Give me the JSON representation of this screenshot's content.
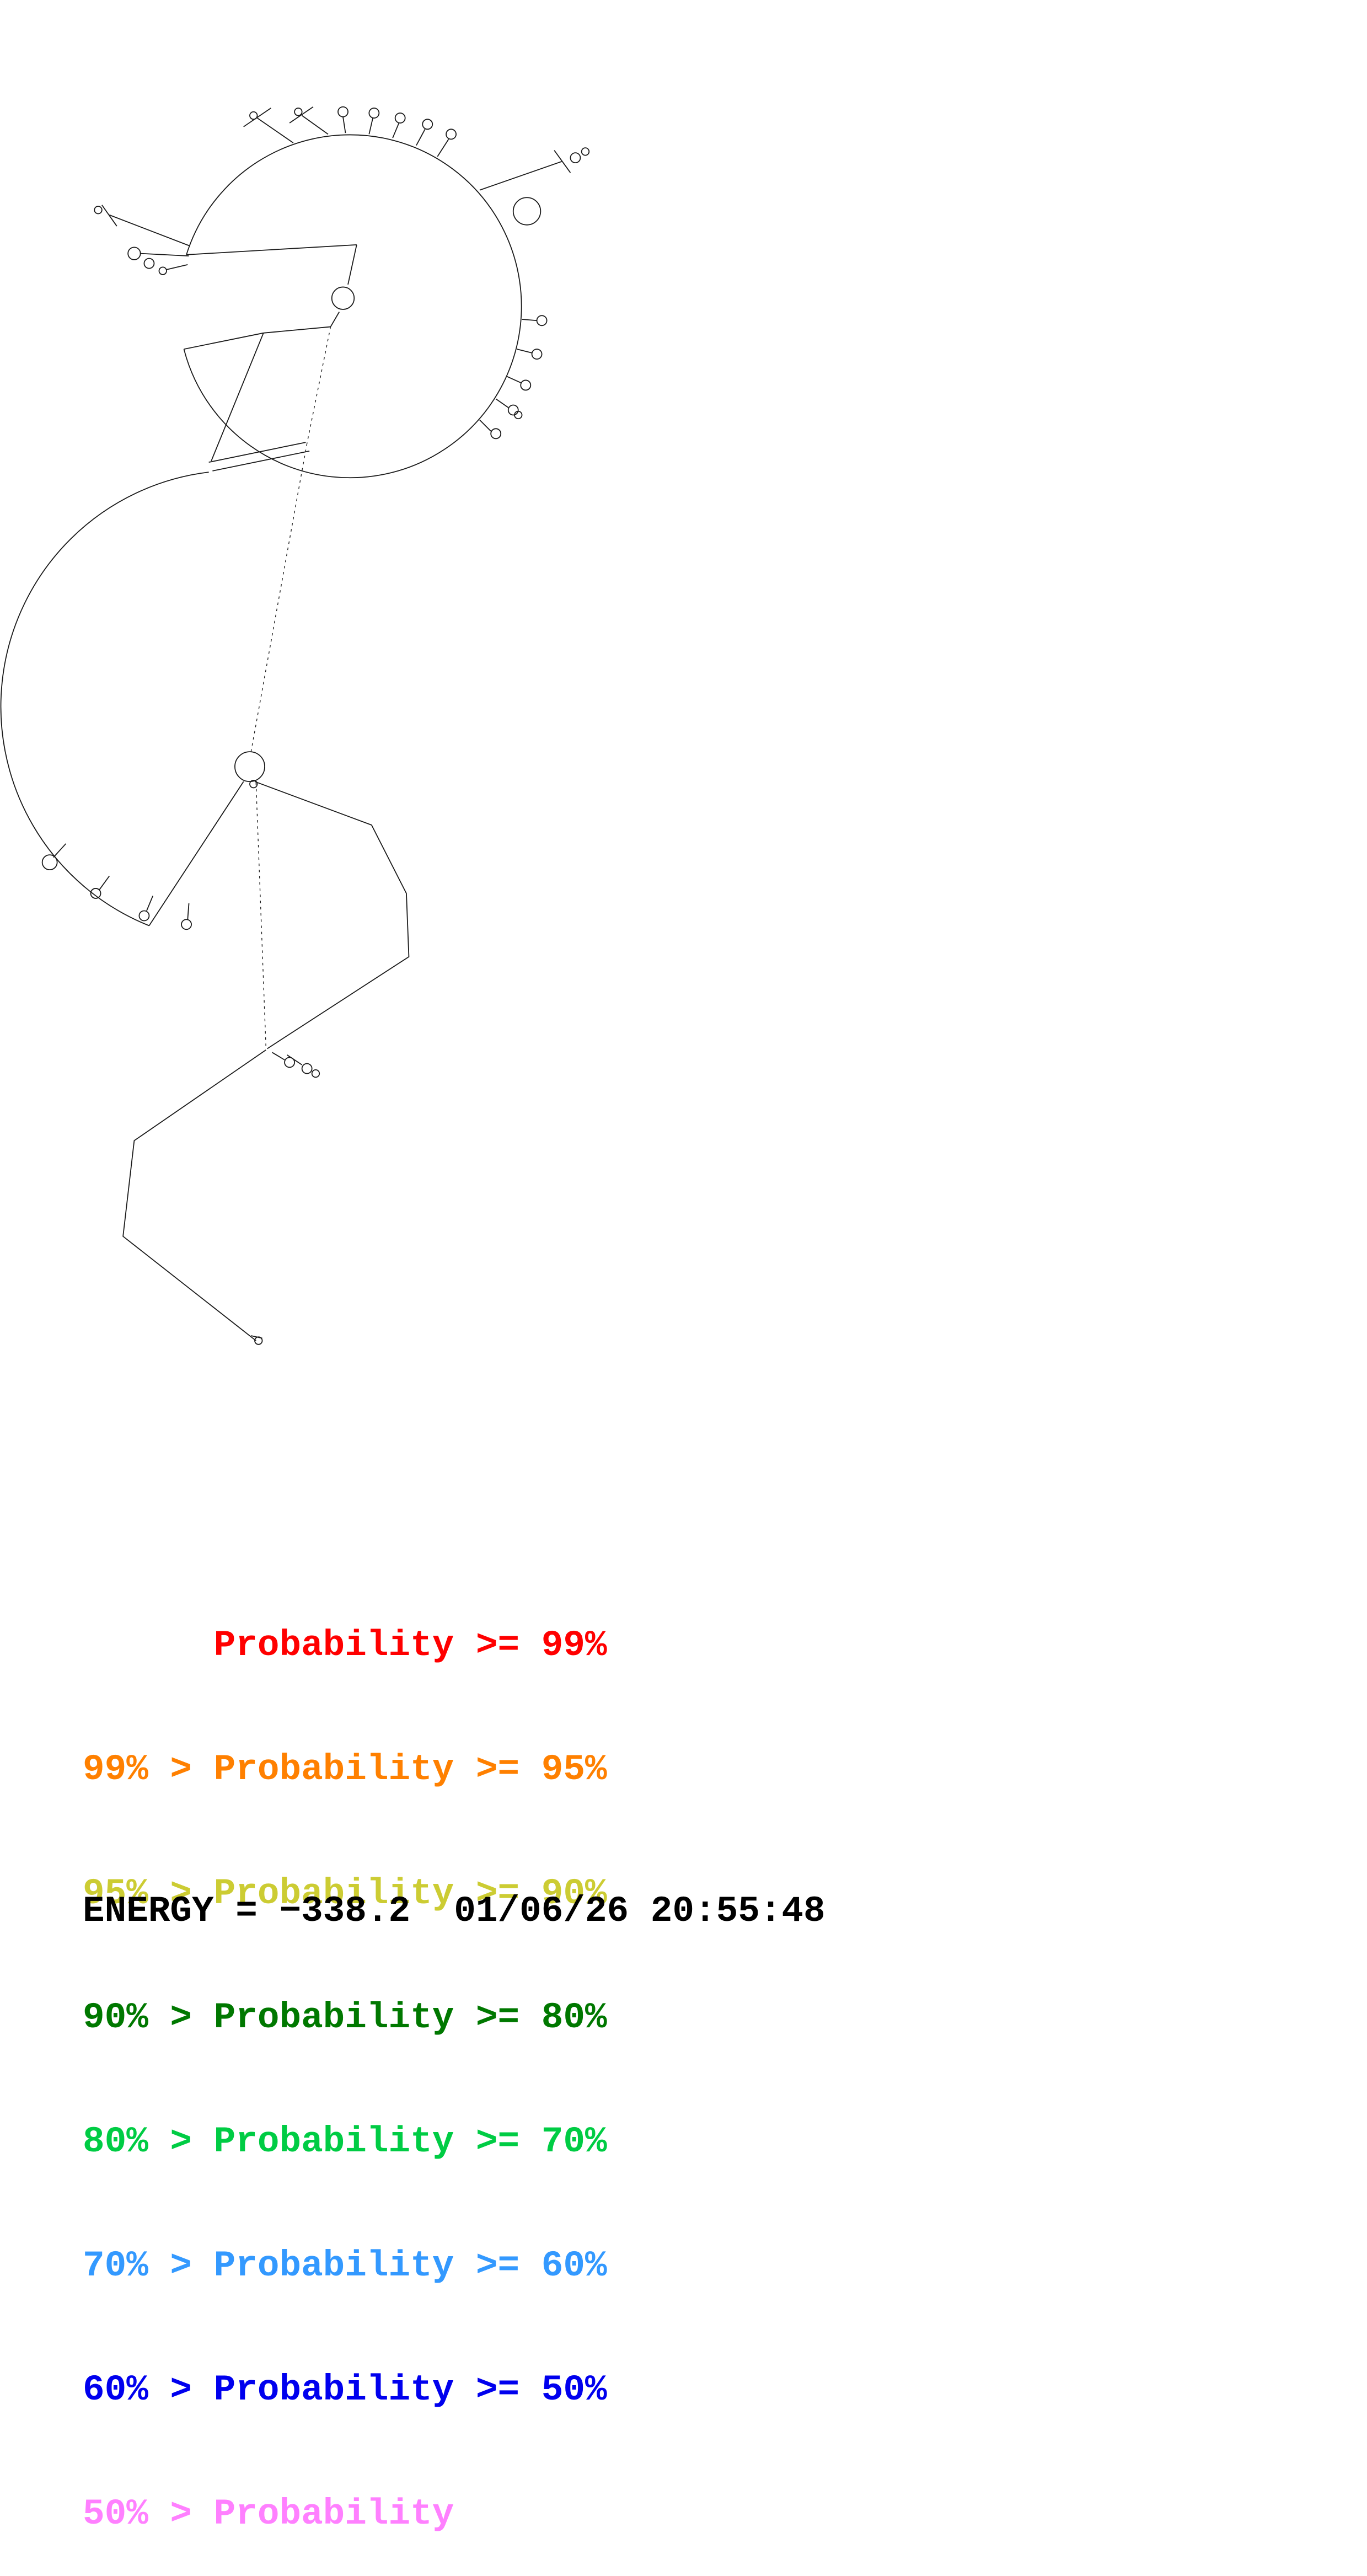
{
  "structure": {
    "stroke": "#1a1a1a",
    "solid_paths": [
      "M150,205 A138,138 0 1 1 148,281",
      "M150,205 L287,197",
      "M287,197 L280,229",
      "M273,251 L266,263",
      "M266,263 L212,268",
      "M212,268 L170,371",
      "M148,281 L212,268",
      "M168,372 L246,356",
      "M171,379 L249,363",
      "M168,380 A190,190 0 0 0 120,745",
      "M120,745 L196,629",
      "M205,629 L299,664 L327,719 L329,770 L215,844",
      "M214,845 L108,918 L99,995 L206,1079",
      "M236,115 L207,95",
      "M196,102 L218,87",
      "M264,108 L243,93",
      "M233,99 L252,86",
      "M278,107 L276,94",
      "M297,108 L300,95",
      "M316,111 L321,99",
      "M335,117 L342,104",
      "M352,126 L361,112",
      "M386,153 L452,130",
      "M446,121 L459,139",
      "M420,257 L432,258",
      "M416,281 L428,284",
      "M408,303 L419,308",
      "M399,321 L409,328",
      "M386,338 L395,347",
      "M153,198 L88,173",
      "M82,165 L94,182",
      "M152,206 L113,204",
      "M151,213 L134,217",
      "M53,679 L43,690",
      "M88,705 L80,716",
      "M123,721 L118,733",
      "M152,727 L151,740",
      "M219,847 L229,853",
      "M231,849 L243,857",
      "M202,1075 L211,1077"
    ],
    "dotted_paths": [
      "M266,263 L247,357",
      "M247,357 L202,605",
      "M206,630 L214,843"
    ],
    "circles": [
      [
        276,
        240,
        9
      ],
      [
        276,
        90,
        4
      ],
      [
        301,
        91,
        4
      ],
      [
        322,
        95,
        4
      ],
      [
        344,
        100,
        4
      ],
      [
        363,
        108,
        4
      ],
      [
        424,
        170,
        11
      ],
      [
        436,
        258,
        4
      ],
      [
        432,
        285,
        4
      ],
      [
        423,
        310,
        4
      ],
      [
        413,
        330,
        4
      ],
      [
        417,
        334,
        3
      ],
      [
        399,
        349,
        4
      ],
      [
        463,
        127,
        4
      ],
      [
        471,
        122,
        3
      ],
      [
        108,
        204,
        5
      ],
      [
        120,
        212,
        4
      ],
      [
        131,
        218,
        3
      ],
      [
        79,
        169,
        3
      ],
      [
        204,
        93,
        3
      ],
      [
        240,
        90,
        3
      ],
      [
        40,
        694,
        6
      ],
      [
        77,
        719,
        4
      ],
      [
        116,
        737,
        4
      ],
      [
        150,
        744,
        4
      ],
      [
        201,
        617,
        12
      ],
      [
        204,
        631,
        3
      ],
      [
        233,
        855,
        4
      ],
      [
        247,
        860,
        4
      ],
      [
        254,
        864,
        3
      ],
      [
        208,
        1079,
        3
      ]
    ]
  },
  "legend": {
    "rows": [
      {
        "label": "      Probability >= 99%",
        "color": "#FF0000"
      },
      {
        "label": "99% > Probability >= 95%",
        "color": "#FF8000"
      },
      {
        "label": "95% > Probability >= 90%",
        "color": "#CCCC33"
      },
      {
        "label": "90% > Probability >= 80%",
        "color": "#007800"
      },
      {
        "label": "80% > Probability >= 70%",
        "color": "#00CC44"
      },
      {
        "label": "70% > Probability >= 60%",
        "color": "#3399FF"
      },
      {
        "label": "60% > Probability >= 50%",
        "color": "#0000EE"
      },
      {
        "label": "50% > Probability",
        "color": "#FF80FF"
      }
    ]
  },
  "footer": {
    "energy_line": "ENERGY = −338.2  01/06/26 20:55:48"
  }
}
